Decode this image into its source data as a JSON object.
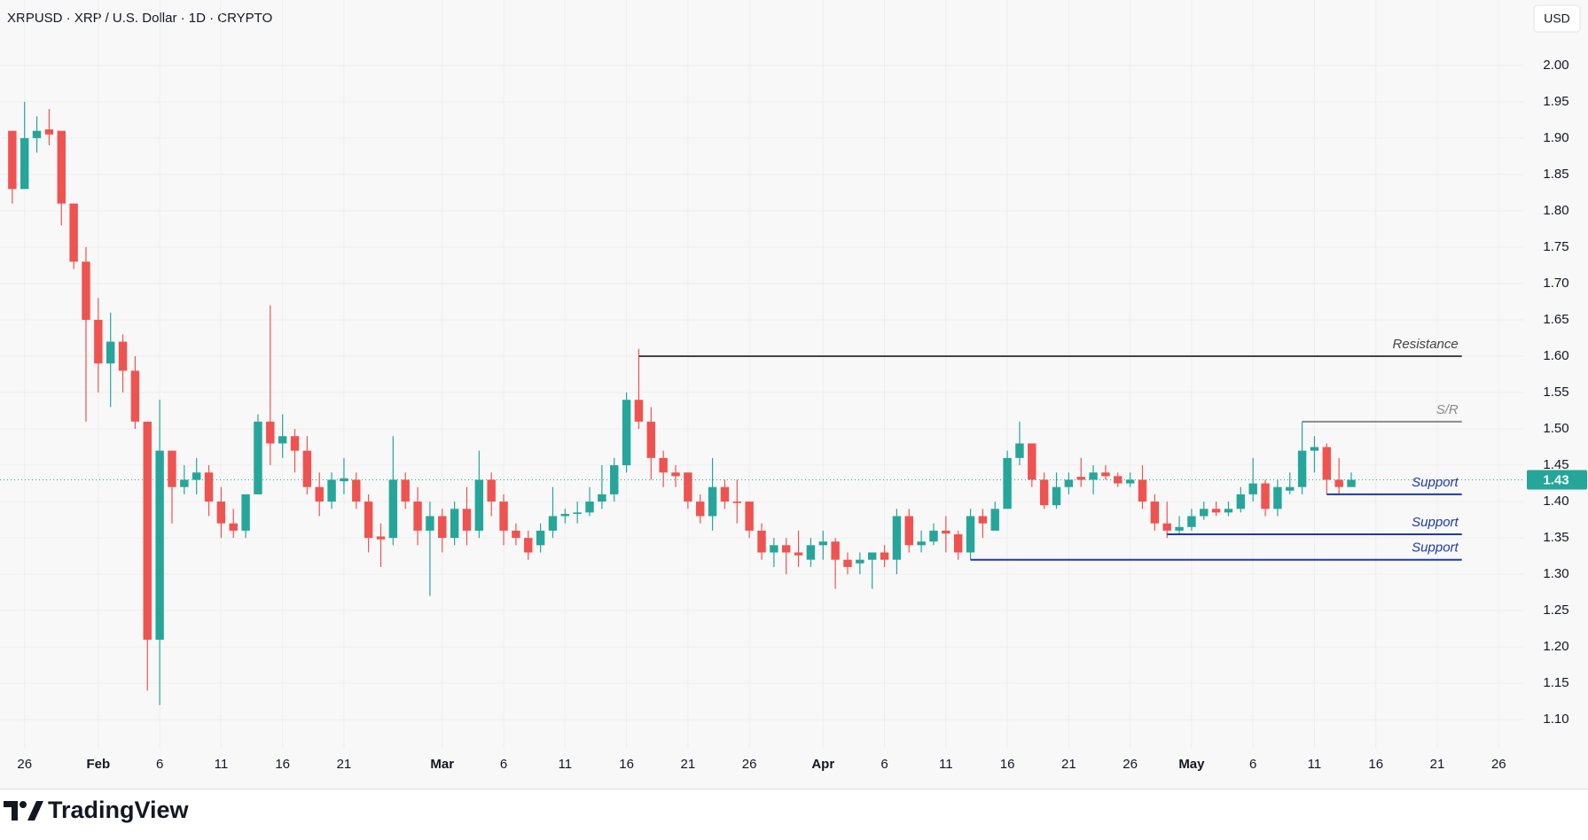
{
  "chart_data": {
    "type": "candlestick",
    "title": "XRPUSD · XRP / U.S. Dollar · 1D · CRYPTO",
    "currency": "USD",
    "branding": "TradingView",
    "up_color": "#26a69a",
    "down_color": "#ef5350",
    "grid": true,
    "x": [
      "01-25",
      "01-26",
      "01-27",
      "01-28",
      "01-29",
      "01-30",
      "01-31",
      "02-01",
      "02-02",
      "02-03",
      "02-04",
      "02-05",
      "02-06",
      "02-07",
      "02-08",
      "02-09",
      "02-10",
      "02-11",
      "02-12",
      "02-13",
      "02-14",
      "02-15",
      "02-16",
      "02-17",
      "02-18",
      "02-19",
      "02-20",
      "02-21",
      "02-22",
      "02-23",
      "02-24",
      "02-25",
      "02-26",
      "02-27",
      "02-28",
      "03-01",
      "03-02",
      "03-03",
      "03-04",
      "03-05",
      "03-06",
      "03-07",
      "03-08",
      "03-09",
      "03-10",
      "03-11",
      "03-12",
      "03-13",
      "03-14",
      "03-15",
      "03-16",
      "03-17",
      "03-18",
      "03-19",
      "03-20",
      "03-21",
      "03-22",
      "03-23",
      "03-24",
      "03-25",
      "03-26",
      "03-27",
      "03-28",
      "03-29",
      "03-30",
      "03-31",
      "04-01",
      "04-02",
      "04-03",
      "04-04",
      "04-05",
      "04-06",
      "04-07",
      "04-08",
      "04-09",
      "04-10",
      "04-11",
      "04-12",
      "04-13",
      "04-14",
      "04-15",
      "04-16",
      "04-17",
      "04-18",
      "04-19",
      "04-20",
      "04-21",
      "04-22",
      "04-23",
      "04-24",
      "04-25",
      "04-26",
      "04-27",
      "04-28",
      "04-29",
      "04-30",
      "05-01",
      "05-02",
      "05-03",
      "05-04",
      "05-05",
      "05-06",
      "05-07",
      "05-08",
      "05-09",
      "05-10",
      "05-11",
      "05-12",
      "05-13",
      "05-14"
    ],
    "open": [
      1.91,
      1.83,
      1.9,
      1.912,
      1.91,
      1.81,
      1.73,
      1.65,
      1.59,
      1.62,
      1.58,
      1.51,
      1.21,
      1.47,
      1.42,
      1.43,
      1.44,
      1.4,
      1.37,
      1.36,
      1.41,
      1.51,
      1.48,
      1.49,
      1.47,
      1.42,
      1.4,
      1.428,
      1.43,
      1.4,
      1.352,
      1.35,
      1.43,
      1.4,
      1.36,
      1.38,
      1.35,
      1.39,
      1.36,
      1.43,
      1.4,
      1.36,
      1.35,
      1.34,
      1.36,
      1.38,
      1.383,
      1.385,
      1.4,
      1.41,
      1.45,
      1.54,
      1.51,
      1.46,
      1.44,
      1.44,
      1.4,
      1.38,
      1.42,
      1.4,
      1.4,
      1.36,
      1.33,
      1.34,
      1.33,
      1.32,
      1.34,
      1.345,
      1.32,
      1.315,
      1.32,
      1.33,
      1.32,
      1.38,
      1.34,
      1.345,
      1.36,
      1.355,
      1.33,
      1.38,
      1.36,
      1.39,
      1.46,
      1.48,
      1.43,
      1.395,
      1.42,
      1.434,
      1.43,
      1.44,
      1.435,
      1.425,
      1.43,
      1.4,
      1.37,
      1.36,
      1.365,
      1.38,
      1.39,
      1.385,
      1.39,
      1.41,
      1.425,
      1.39,
      1.415,
      1.42,
      1.47,
      1.475,
      1.43,
      1.42
    ],
    "high": [
      1.91,
      1.95,
      1.93,
      1.94,
      1.91,
      1.81,
      1.75,
      1.68,
      1.66,
      1.63,
      1.6,
      1.51,
      1.54,
      1.47,
      1.45,
      1.46,
      1.45,
      1.42,
      1.39,
      1.41,
      1.52,
      1.67,
      1.52,
      1.5,
      1.49,
      1.44,
      1.44,
      1.46,
      1.44,
      1.41,
      1.37,
      1.49,
      1.44,
      1.42,
      1.4,
      1.39,
      1.4,
      1.42,
      1.47,
      1.44,
      1.41,
      1.37,
      1.36,
      1.37,
      1.42,
      1.39,
      1.4,
      1.42,
      1.45,
      1.46,
      1.55,
      1.61,
      1.53,
      1.47,
      1.45,
      1.44,
      1.41,
      1.46,
      1.43,
      1.43,
      1.4,
      1.37,
      1.35,
      1.35,
      1.36,
      1.35,
      1.36,
      1.35,
      1.33,
      1.33,
      1.33,
      1.34,
      1.39,
      1.39,
      1.36,
      1.37,
      1.38,
      1.36,
      1.39,
      1.39,
      1.4,
      1.47,
      1.51,
      1.48,
      1.44,
      1.44,
      1.44,
      1.46,
      1.45,
      1.45,
      1.44,
      1.44,
      1.45,
      1.41,
      1.4,
      1.38,
      1.39,
      1.4,
      1.4,
      1.4,
      1.42,
      1.46,
      1.43,
      1.43,
      1.44,
      1.51,
      1.49,
      1.48,
      1.46,
      1.44
    ],
    "low": [
      1.81,
      1.83,
      1.88,
      1.89,
      1.78,
      1.72,
      1.51,
      1.55,
      1.53,
      1.55,
      1.5,
      1.14,
      1.12,
      1.37,
      1.41,
      1.41,
      1.38,
      1.35,
      1.35,
      1.35,
      1.41,
      1.45,
      1.46,
      1.44,
      1.41,
      1.38,
      1.39,
      1.41,
      1.39,
      1.33,
      1.31,
      1.34,
      1.39,
      1.34,
      1.27,
      1.33,
      1.34,
      1.34,
      1.35,
      1.38,
      1.34,
      1.34,
      1.32,
      1.33,
      1.35,
      1.37,
      1.37,
      1.38,
      1.39,
      1.4,
      1.44,
      1.5,
      1.43,
      1.42,
      1.42,
      1.39,
      1.37,
      1.36,
      1.39,
      1.37,
      1.35,
      1.32,
      1.31,
      1.3,
      1.31,
      1.31,
      1.32,
      1.28,
      1.3,
      1.3,
      1.28,
      1.31,
      1.3,
      1.33,
      1.33,
      1.34,
      1.33,
      1.32,
      1.32,
      1.35,
      1.36,
      1.39,
      1.45,
      1.42,
      1.39,
      1.39,
      1.41,
      1.42,
      1.41,
      1.43,
      1.42,
      1.42,
      1.39,
      1.36,
      1.35,
      1.355,
      1.36,
      1.375,
      1.38,
      1.38,
      1.385,
      1.4,
      1.38,
      1.38,
      1.41,
      1.41,
      1.44,
      1.41,
      1.41,
      1.42
    ],
    "close": [
      1.83,
      1.9,
      1.91,
      1.905,
      1.81,
      1.73,
      1.65,
      1.59,
      1.62,
      1.58,
      1.51,
      1.21,
      1.47,
      1.42,
      1.43,
      1.44,
      1.4,
      1.37,
      1.36,
      1.41,
      1.51,
      1.48,
      1.49,
      1.47,
      1.42,
      1.4,
      1.43,
      1.432,
      1.4,
      1.35,
      1.348,
      1.43,
      1.4,
      1.36,
      1.38,
      1.35,
      1.39,
      1.36,
      1.43,
      1.4,
      1.36,
      1.35,
      1.33,
      1.36,
      1.38,
      1.383,
      1.385,
      1.4,
      1.41,
      1.45,
      1.54,
      1.51,
      1.46,
      1.44,
      1.435,
      1.4,
      1.38,
      1.42,
      1.4,
      1.398,
      1.36,
      1.33,
      1.34,
      1.33,
      1.326,
      1.34,
      1.345,
      1.32,
      1.31,
      1.32,
      1.33,
      1.32,
      1.38,
      1.34,
      1.345,
      1.36,
      1.356,
      1.33,
      1.38,
      1.37,
      1.39,
      1.46,
      1.48,
      1.43,
      1.395,
      1.42,
      1.43,
      1.43,
      1.44,
      1.435,
      1.425,
      1.43,
      1.4,
      1.37,
      1.36,
      1.365,
      1.38,
      1.39,
      1.385,
      1.39,
      1.41,
      1.425,
      1.39,
      1.42,
      1.42,
      1.47,
      1.475,
      1.43,
      1.42,
      1.43
    ],
    "xlim": [
      "01-24",
      "05-28"
    ],
    "xticks": [
      {
        "value": "01-26",
        "label": "26"
      },
      {
        "value": "02-01",
        "label": "Feb"
      },
      {
        "value": "02-06",
        "label": "6"
      },
      {
        "value": "02-11",
        "label": "11"
      },
      {
        "value": "02-16",
        "label": "16"
      },
      {
        "value": "02-21",
        "label": "21"
      },
      {
        "value": "03-01",
        "label": "Mar"
      },
      {
        "value": "03-06",
        "label": "6"
      },
      {
        "value": "03-11",
        "label": "11"
      },
      {
        "value": "03-16",
        "label": "16"
      },
      {
        "value": "03-21",
        "label": "21"
      },
      {
        "value": "03-26",
        "label": "26"
      },
      {
        "value": "04-01",
        "label": "Apr"
      },
      {
        "value": "04-06",
        "label": "6"
      },
      {
        "value": "04-11",
        "label": "11"
      },
      {
        "value": "04-16",
        "label": "16"
      },
      {
        "value": "04-21",
        "label": "21"
      },
      {
        "value": "04-26",
        "label": "26"
      },
      {
        "value": "05-01",
        "label": "May"
      },
      {
        "value": "05-06",
        "label": "6"
      },
      {
        "value": "05-11",
        "label": "11"
      },
      {
        "value": "05-16",
        "label": "16"
      },
      {
        "value": "05-21",
        "label": "21"
      },
      {
        "value": "05-26",
        "label": "26"
      }
    ],
    "ylim": [
      1.06,
      2.09
    ],
    "yticks": [
      {
        "value": 1.1,
        "label": "1.10"
      },
      1.15,
      {
        "value": 1.2,
        "label": "1.20"
      },
      1.25,
      {
        "value": 1.3,
        "label": "1.30"
      },
      1.35,
      {
        "value": 1.4,
        "label": "1.40"
      },
      1.45,
      {
        "value": 1.5,
        "label": "1.50"
      },
      1.55,
      {
        "value": 1.6,
        "label": "1.60"
      },
      1.65,
      {
        "value": 1.7,
        "label": "1.70"
      },
      1.75,
      {
        "value": 1.8,
        "label": "1.80"
      },
      1.85,
      {
        "value": 1.9,
        "label": "1.90"
      },
      1.95,
      {
        "value": 2.0,
        "label": "2.00"
      }
    ],
    "annotations": [
      {
        "label": "Resistance",
        "value": 1.6,
        "start": "03-17",
        "end": "05-23",
        "color": "#444444"
      },
      {
        "label": "S/R",
        "value": 1.51,
        "start": "05-10",
        "end": "05-23",
        "color": "#8a8a8a"
      },
      {
        "label": "Support",
        "value": 1.41,
        "start": "05-12",
        "end": "05-23",
        "color": "#1f3aa6"
      },
      {
        "label": "Support",
        "value": 1.355,
        "start": "04-29",
        "end": "05-23",
        "color": "#1f3aa6"
      },
      {
        "label": "Support",
        "value": 1.32,
        "start": "04-13",
        "end": "05-23",
        "color": "#1f3aa6"
      }
    ]
  }
}
